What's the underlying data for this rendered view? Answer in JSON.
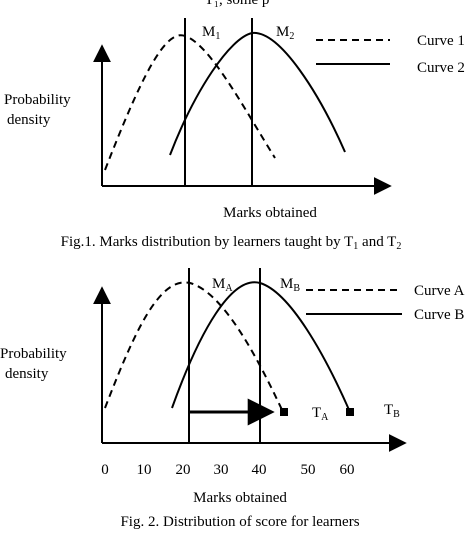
{
  "top_cut_text": "T₁, some p",
  "fig1": {
    "ylabel_line1": "Probability",
    "ylabel_line2": "density",
    "xlabel": "Marks obtained",
    "marker1": {
      "base": "M",
      "sub": "1"
    },
    "marker2": {
      "base": "M",
      "sub": "2"
    },
    "legend": [
      {
        "label": "Curve 1",
        "style": "dashed"
      },
      {
        "label": "Curve 2",
        "style": "solid"
      }
    ],
    "caption": {
      "main": "Fig.1. Marks distribution by learners taught by T",
      "sub1": "1",
      "mid": " and T",
      "sub2": "2"
    }
  },
  "fig2": {
    "ylabel_line1": "Probability",
    "ylabel_line2": "density",
    "xlabel": "Marks obtained",
    "ticks": [
      "0",
      "10",
      "20",
      "30",
      "40",
      "50",
      "60"
    ],
    "marker_a": {
      "base": "M",
      "sub": "A"
    },
    "marker_b": {
      "base": "M",
      "sub": "B"
    },
    "end_a": {
      "base": "T",
      "sub": "A"
    },
    "end_b": {
      "base": "T",
      "sub": "B"
    },
    "legend": [
      {
        "label": "Curve A",
        "style": "dashed"
      },
      {
        "label": "Curve B",
        "style": "solid"
      }
    ],
    "caption": "Fig. 2. Distribution of score for learners"
  }
}
